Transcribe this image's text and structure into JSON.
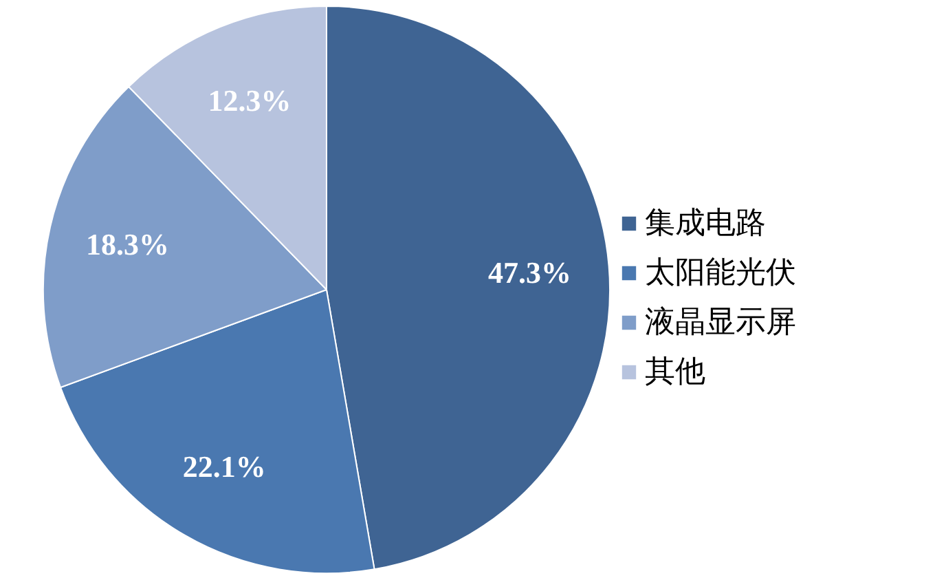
{
  "chart_data": {
    "type": "pie",
    "categories": [
      "集成电路",
      "太阳能光伏",
      "液晶显示屏",
      "其他"
    ],
    "values": [
      47.3,
      22.1,
      18.3,
      12.3
    ],
    "colors": [
      "#3f6493",
      "#4a78b0",
      "#7f9dc9",
      "#b7c3de"
    ],
    "value_labels": [
      "47.3%",
      "22.1%",
      "18.3%",
      "12.3%"
    ],
    "legend": "right"
  }
}
